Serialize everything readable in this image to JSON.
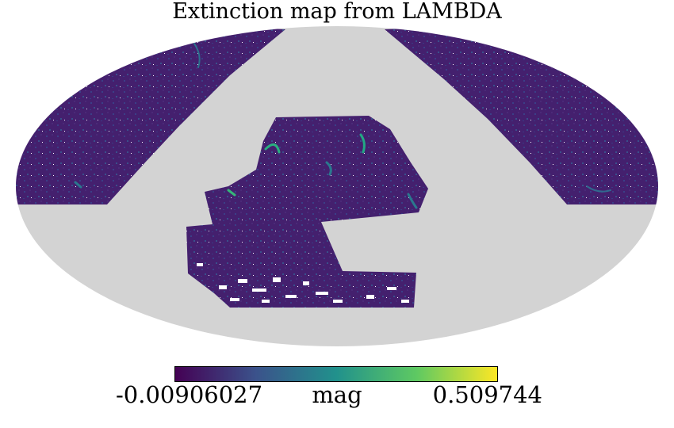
{
  "title": "Extinction map from LAMBDA",
  "colorbar": {
    "min_label": "-0.00906027",
    "max_label": "0.509744",
    "unit": "mag",
    "colormap": [
      "#440154",
      "#3b528b",
      "#21918c",
      "#5ec962",
      "#fde725"
    ]
  },
  "projection": "mollweide",
  "colors": {
    "masked": "#d3d3d3",
    "background_field": "#46216f",
    "bright": "#29af7f"
  }
}
